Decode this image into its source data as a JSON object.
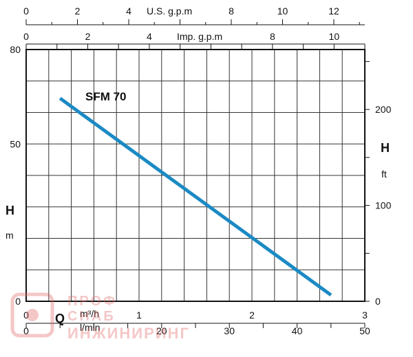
{
  "chart_data": {
    "type": "line",
    "title": "SFM 70",
    "series": [
      {
        "name": "SFM 70",
        "x": [
          0.3,
          2.7
        ],
        "y": [
          64.5,
          2
        ]
      }
    ],
    "xlim": [
      0,
      3
    ],
    "ylim": [
      0,
      80
    ],
    "grid": true,
    "color": "#1b8ac4",
    "left_axis": {
      "label": "H",
      "unit": "m",
      "ticks": [
        0,
        50,
        80
      ]
    },
    "right_axis": {
      "label": "H",
      "unit": "ft",
      "ticks": [
        0,
        100,
        200
      ]
    },
    "bottom_axes": {
      "q_label": "Q",
      "m3h": {
        "unit": "m³/h",
        "ticks": [
          0,
          1,
          2,
          3
        ]
      },
      "lmin": {
        "unit": "l/min",
        "ticks": [
          0,
          20,
          30,
          40,
          50
        ]
      }
    },
    "top_axes": {
      "usgpm": {
        "unit": "U.S. g.p.m",
        "ticks": [
          0,
          2,
          4,
          8,
          10,
          12
        ]
      },
      "impgpm": {
        "unit": "Imp. g.p.m",
        "ticks": [
          0,
          2,
          4,
          8,
          10
        ]
      }
    }
  },
  "watermark": {
    "line1": "ПРОФ",
    "line2": "СНАБ",
    "line3": "ИНЖИНИРИНГ"
  }
}
